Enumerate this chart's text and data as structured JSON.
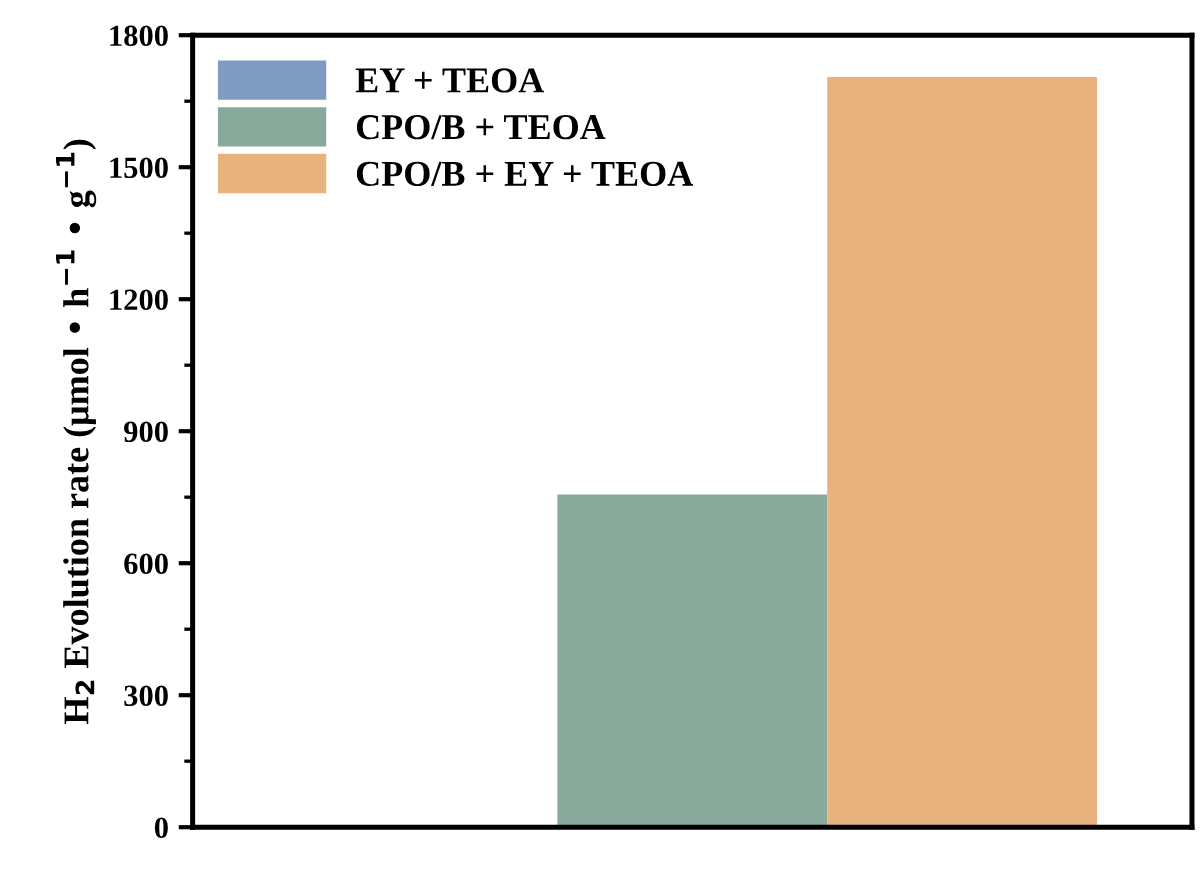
{
  "chart_data": {
    "type": "bar",
    "ylabel": "H$_{2}$ Evolution rate (μmol • h$^{−1}$ • g$^{−1}$)",
    "categories": [
      null
    ],
    "series": [
      {
        "name": "EY + TEOA",
        "color": "#7f9cc0",
        "values": [
          0
        ]
      },
      {
        "name": "CPO/B + TEOA",
        "color": "#88a99b",
        "values": [
          756
        ]
      },
      {
        "name": "CPO/B + EY + TEOA",
        "color": "#e8b27e",
        "values": [
          1705
        ]
      }
    ],
    "ylim": [
      0,
      1800
    ],
    "yticks": [
      0,
      300,
      600,
      900,
      1200,
      1500,
      1800
    ],
    "legend": "top left",
    "grid": false
  }
}
